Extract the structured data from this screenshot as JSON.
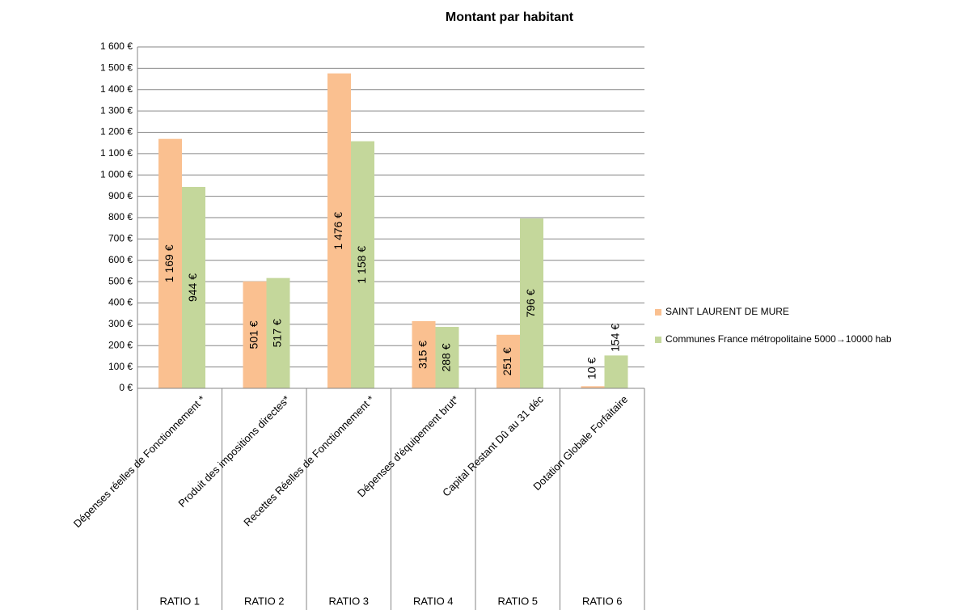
{
  "chart_data": {
    "type": "bar",
    "title": "Montant par habitant",
    "categories": [
      "Dépenses réelles de Fonctionnement *",
      "Produit des impositions directes*",
      "Recettes Réelles de Fonctionnement *",
      "Dépenses d'équipement brut*",
      "Capital Restant Dû au 31 déc",
      "Dotation Globale Forfaitaire"
    ],
    "groups": [
      "RATIO 1",
      "RATIO 2",
      "RATIO 3",
      "RATIO 4",
      "RATIO 5",
      "RATIO 6"
    ],
    "series": [
      {
        "name": "SAINT LAURENT DE MURE",
        "color": "#fac090",
        "values": [
          1169,
          501,
          1476,
          315,
          251,
          10
        ],
        "value_labels": [
          "1 169 €",
          "501 €",
          "1 476 €",
          "315 €",
          "251 €",
          "10 €"
        ]
      },
      {
        "name": "Communes France métropolitaine 5000→10000 hab",
        "color": "#c4d79b",
        "values": [
          944,
          517,
          1158,
          288,
          796,
          154
        ],
        "value_labels": [
          "944 €",
          "517 €",
          "1 158 €",
          "288 €",
          "796 €",
          "154 €"
        ]
      }
    ],
    "ylim": [
      0,
      1600
    ],
    "yticks": [
      {
        "value": 0,
        "label": "0 €"
      },
      {
        "value": 100,
        "label": "100 €"
      },
      {
        "value": 200,
        "label": "200 €"
      },
      {
        "value": 300,
        "label": "300 €"
      },
      {
        "value": 400,
        "label": "400 €"
      },
      {
        "value": 500,
        "label": "500 €"
      },
      {
        "value": 600,
        "label": "600 €"
      },
      {
        "value": 700,
        "label": "700 €"
      },
      {
        "value": 800,
        "label": "800 €"
      },
      {
        "value": 900,
        "label": "900 €"
      },
      {
        "value": 1000,
        "label": "1 000 €"
      },
      {
        "value": 1100,
        "label": "1 100 €"
      },
      {
        "value": 1200,
        "label": "1 200 €"
      },
      {
        "value": 1300,
        "label": "1 300 €"
      },
      {
        "value": 1400,
        "label": "1 400 €"
      },
      {
        "value": 1500,
        "label": "1 500 €"
      },
      {
        "value": 1600,
        "label": "1 600 €"
      }
    ],
    "grid": true,
    "legend": "right"
  }
}
